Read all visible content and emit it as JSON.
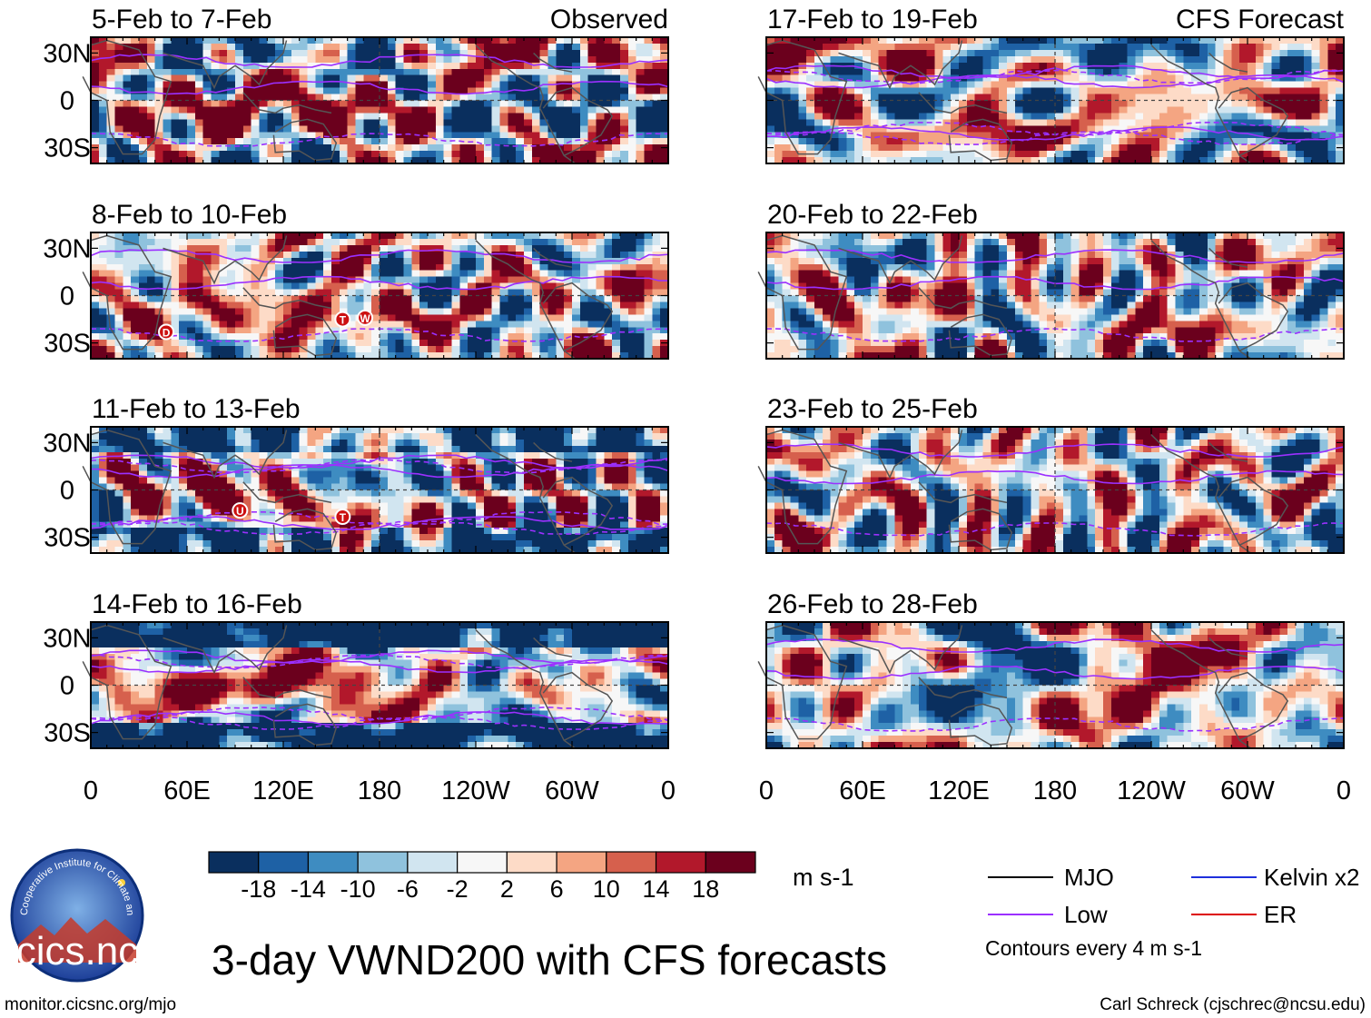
{
  "chart_data": {
    "type": "heatmap",
    "title": "3-day VWND200 with CFS forecasts",
    "variable": "VWND200",
    "units": "m s-1",
    "observed_label": "Observed",
    "forecast_label": "CFS Forecast",
    "xticks": [
      "0",
      "60E",
      "120E",
      "180",
      "120W",
      "60W",
      "0"
    ],
    "yticks": [
      "30N",
      "0",
      "30S"
    ],
    "xlim_deg_east": [
      0,
      360
    ],
    "ylim_deg": [
      -40,
      40
    ],
    "colorbar": {
      "tick_labels": [
        "-18",
        "-14",
        "-10",
        "-6",
        "-2",
        "2",
        "6",
        "10",
        "14",
        "18"
      ],
      "levels": [
        -18,
        -14,
        -10,
        -6,
        -2,
        2,
        6,
        10,
        14,
        18
      ],
      "colors": [
        "#0a2f5e",
        "#1e61a5",
        "#3e8cc1",
        "#8fc2dd",
        "#d1e5f0",
        "#f7f7f7",
        "#fddbc7",
        "#f4a582",
        "#d6604d",
        "#b2182b",
        "#6b001d"
      ]
    },
    "panels": [
      {
        "column": "observed",
        "period": "5-Feb to 7-Feb",
        "header": "Observed",
        "seed": 11,
        "bias": 0.6,
        "bias_lat": -10,
        "lo_band": 0,
        "markers": []
      },
      {
        "column": "observed",
        "period": "8-Feb to 10-Feb",
        "header": "",
        "seed": 23,
        "bias": 0.8,
        "bias_lat": -5,
        "lo_band": 0,
        "markers": [
          {
            "lon": 47,
            "lat": -23,
            "code": "D"
          },
          {
            "lon": 157,
            "lat": -15,
            "code": "T"
          },
          {
            "lon": 171,
            "lat": -14,
            "code": "W"
          }
        ]
      },
      {
        "column": "observed",
        "period": "11-Feb to 13-Feb",
        "header": "",
        "seed": 37,
        "bias": 1.2,
        "bias_lat": -5,
        "lo_band": 1,
        "markers": [
          {
            "lon": 93,
            "lat": -13,
            "code": "U"
          },
          {
            "lon": 157,
            "lat": -17,
            "code": "T"
          }
        ]
      },
      {
        "column": "observed",
        "period": "14-Feb to 16-Feb",
        "header": "",
        "seed": 41,
        "bias": 1.8,
        "bias_lat": 0,
        "lo_band": 1,
        "markers": []
      },
      {
        "column": "forecast",
        "period": "17-Feb to 19-Feb",
        "header": "CFS Forecast",
        "seed": 53,
        "bias": 0.2,
        "bias_lat": 0,
        "lo_band": 1,
        "markers": []
      },
      {
        "column": "forecast",
        "period": "20-Feb to 22-Feb",
        "header": "",
        "seed": 67,
        "bias": 0.1,
        "bias_lat": 0,
        "lo_band": 0,
        "markers": []
      },
      {
        "column": "forecast",
        "period": "23-Feb to 25-Feb",
        "header": "",
        "seed": 79,
        "bias": 0.0,
        "bias_lat": 0,
        "lo_band": 0,
        "markers": []
      },
      {
        "column": "forecast",
        "period": "26-Feb to 28-Feb",
        "header": "",
        "seed": 83,
        "bias": 0.0,
        "bias_lat": 0,
        "lo_band": 0,
        "markers": []
      }
    ]
  },
  "legend": {
    "items": [
      {
        "label": "MJO",
        "color": "#000000"
      },
      {
        "label": "Low",
        "color": "#9b30ff"
      },
      {
        "label": "Kelvin x2",
        "color": "#1f2fdc"
      },
      {
        "label": "ER",
        "color": "#dd0000"
      }
    ],
    "contour_note": "Contours every 4 m s-1"
  },
  "logo": {
    "text": "cics.nc",
    "ring_text": "Cooperative Institute for Climate and Satellites"
  },
  "footer": {
    "url": "monitor.cicsnc.org/mjo",
    "credit": "Carl Schreck (cjschrec@ncsu.edu)"
  }
}
